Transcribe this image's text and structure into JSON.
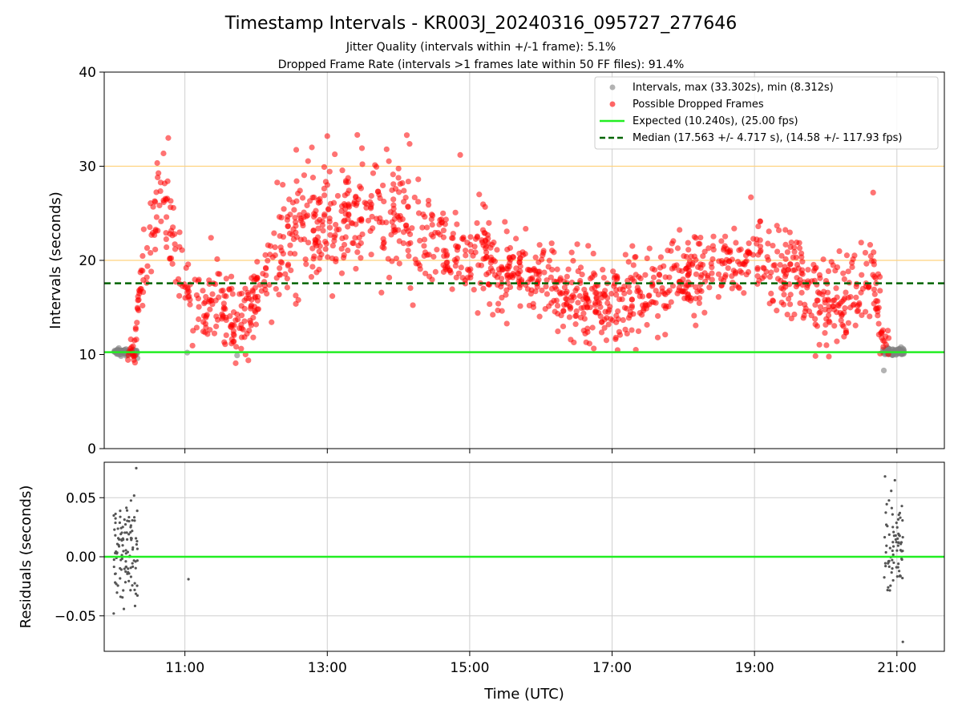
{
  "chart_data": [
    {
      "type": "scatter",
      "title": "Timestamp Intervals - KR003J_20240316_095727_277646",
      "subtitle_lines": [
        "Jitter Quality (intervals within +/-1 frame): 5.1%",
        "Dropped Frame Rate (intervals >1 frames late within 50 FF files): 91.4%"
      ],
      "xlabel": "",
      "ylabel": "Intervals (seconds)",
      "xlim": [
        "09:52",
        "21:40"
      ],
      "ylim": [
        0,
        40
      ],
      "yticks": [
        0,
        10,
        20,
        30,
        40
      ],
      "xticks": [
        "11:00",
        "13:00",
        "15:00",
        "17:00",
        "19:00",
        "21:00"
      ],
      "grid": "vertical",
      "reference_lines": [
        {
          "y": 30,
          "color": "#ffd27f"
        },
        {
          "y": 20,
          "color": "#ffd27f"
        }
      ],
      "legend_position": "top-right",
      "series": [
        {
          "name": "Intervals, max (33.302s), min (8.312s)",
          "kind": "points",
          "color": "#808080",
          "ranges": [
            {
              "x_start": "10:00",
              "x_end": "10:20",
              "y_mean": 10.24,
              "y_spread": 0.35
            },
            {
              "x_start": "20:48",
              "x_end": "21:06",
              "y_mean": 10.24,
              "y_spread": 0.4
            }
          ],
          "extra_points": [
            {
              "x": "10:20",
              "y": 9.6
            },
            {
              "x": "11:02",
              "y": 10.2
            },
            {
              "x": "11:44",
              "y": 9.9
            },
            {
              "x": "20:49",
              "y": 8.3
            }
          ]
        },
        {
          "name": "Possible Dropped Frames",
          "kind": "points",
          "color": "#ff0000",
          "trend": [
            {
              "x": "10:12",
              "y": 10.5
            },
            {
              "x": "10:18",
              "y": 11
            },
            {
              "x": "10:22",
              "y": 17
            },
            {
              "x": "10:30",
              "y": 22
            },
            {
              "x": "10:40",
              "y": 27
            },
            {
              "x": "10:50",
              "y": 22
            },
            {
              "x": "11:00",
              "y": 17
            },
            {
              "x": "11:15",
              "y": 15
            },
            {
              "x": "11:30",
              "y": 15.5
            },
            {
              "x": "11:45",
              "y": 13
            },
            {
              "x": "12:00",
              "y": 16
            },
            {
              "x": "12:20",
              "y": 22
            },
            {
              "x": "12:40",
              "y": 24
            },
            {
              "x": "13:00",
              "y": 24
            },
            {
              "x": "13:30",
              "y": 25
            },
            {
              "x": "14:00",
              "y": 25
            },
            {
              "x": "14:20",
              "y": 23
            },
            {
              "x": "14:40",
              "y": 21
            },
            {
              "x": "15:00",
              "y": 20.5
            },
            {
              "x": "15:30",
              "y": 19
            },
            {
              "x": "16:00",
              "y": 17.5
            },
            {
              "x": "16:30",
              "y": 15.5
            },
            {
              "x": "17:00",
              "y": 15.5
            },
            {
              "x": "17:30",
              "y": 17
            },
            {
              "x": "18:00",
              "y": 18.5
            },
            {
              "x": "18:30",
              "y": 19.5
            },
            {
              "x": "19:00",
              "y": 20.5
            },
            {
              "x": "19:30",
              "y": 19
            },
            {
              "x": "19:45",
              "y": 16.5
            },
            {
              "x": "20:00",
              "y": 15.5
            },
            {
              "x": "20:15",
              "y": 16
            },
            {
              "x": "20:30",
              "y": 18
            },
            {
              "x": "20:40",
              "y": 19
            },
            {
              "x": "20:46",
              "y": 14
            },
            {
              "x": "20:48",
              "y": 11
            },
            {
              "x": "20:54",
              "y": 10.5
            }
          ],
          "extra_points": [
            {
              "x": "10:46",
              "y": 33
            },
            {
              "x": "12:47",
              "y": 32
            },
            {
              "x": "13:00",
              "y": 33.2
            },
            {
              "x": "14:07",
              "y": 33.3
            },
            {
              "x": "13:50",
              "y": 31.8
            },
            {
              "x": "14:52",
              "y": 31.2
            },
            {
              "x": "15:08",
              "y": 27
            },
            {
              "x": "17:20",
              "y": 10.5
            },
            {
              "x": "18:57",
              "y": 26.7
            },
            {
              "x": "20:40",
              "y": 27.2
            },
            {
              "x": "11:22",
              "y": 22.4
            }
          ]
        },
        {
          "name": "Expected (10.240s), (25.00 fps)",
          "kind": "hline",
          "y": 10.24,
          "color": "#22ee22",
          "style": "solid"
        },
        {
          "name": "Median (17.563 +/- 4.717 s), (14.58 +/- 117.93 fps)",
          "kind": "hline",
          "y": 17.563,
          "color": "#006400",
          "style": "dashed"
        }
      ]
    },
    {
      "type": "scatter",
      "xlabel": "Time (UTC)",
      "ylabel": "Residuals (seconds)",
      "xlim": [
        "09:52",
        "21:40"
      ],
      "ylim": [
        -0.08,
        0.08
      ],
      "yticks": [
        -0.05,
        0,
        0.05
      ],
      "ytick_labels": [
        "−0.05",
        "0.00",
        "0.05"
      ],
      "xticks": [
        "11:00",
        "13:00",
        "15:00",
        "17:00",
        "19:00",
        "21:00"
      ],
      "grid": "both",
      "series": [
        {
          "kind": "points",
          "color": "#555555",
          "clusters": [
            {
              "x_start": "10:00",
              "x_end": "10:20",
              "n": 110
            },
            {
              "x_start": "20:49",
              "x_end": "21:05",
              "n": 75
            }
          ],
          "extra_points": [
            {
              "x": "10:19",
              "y": 0.075
            },
            {
              "x": "10:00",
              "y": -0.048
            },
            {
              "x": "11:03",
              "y": -0.019
            },
            {
              "x": "21:05",
              "y": -0.072
            },
            {
              "x": "20:50",
              "y": 0.068
            }
          ]
        },
        {
          "kind": "hline",
          "y": 0,
          "color": "#22ee22",
          "style": "solid"
        }
      ]
    }
  ]
}
